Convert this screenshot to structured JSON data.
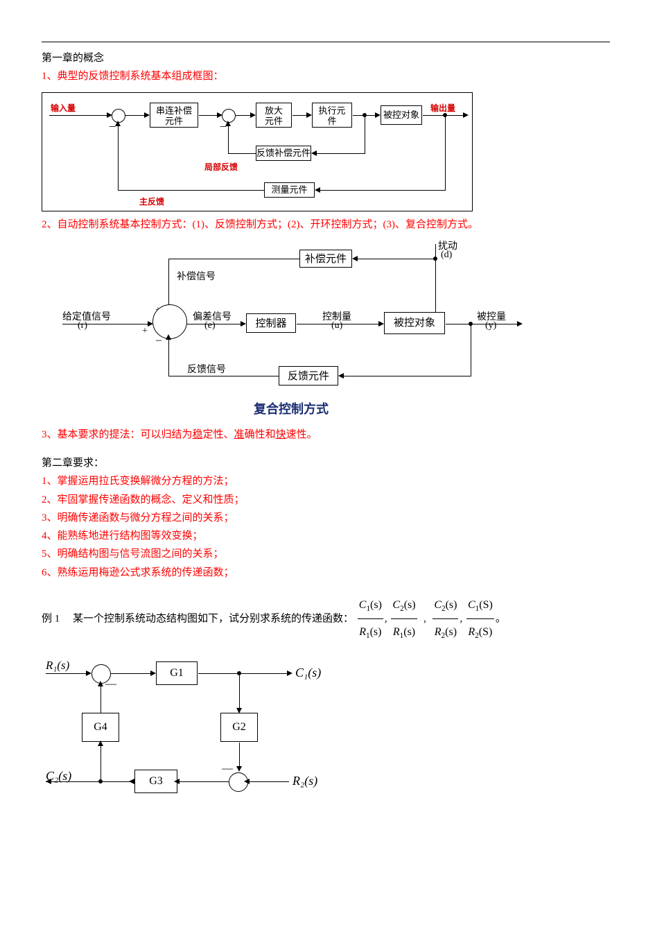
{
  "chapter1_title": "第一章的概念",
  "item1_heading": "1、典型的反馈控制系统基本组成框图：",
  "diagram1": {
    "type": "flowchart",
    "border_color": "#000000",
    "background_color": "#ffffff",
    "input_label": "输入量",
    "output_label": "输出量",
    "box_serial_comp": "串连补偿\n元件",
    "box_amplifier": "放大\n元件",
    "box_actuator": "执行元\n件",
    "box_plant": "被控对象",
    "box_fb_comp": "反馈补偿元件",
    "box_measure": "测量元件",
    "label_local_fb": "局部反馈",
    "label_main_fb": "主反馈",
    "minus1": "－",
    "minus2": "－",
    "red_label_color": "#d60000",
    "text_color": "#000000",
    "font_size_box": 13,
    "font_size_label": 12,
    "line_color": "#000000"
  },
  "item2_heading": "2、自动控制系统基本控制方式：(1)、反馈控制方式；(2)、开环控制方式；(3)、复合控制方式。",
  "item2_extra": "",
  "diagram2": {
    "type": "flowchart",
    "label_setpoint": "给定值信号",
    "label_setpoint_sym": "(r)",
    "label_comp_signal": "补偿信号",
    "label_error": "偏差信号",
    "label_error_sym": "(e)",
    "label_fb_signal": "反馈信号",
    "label_control_var": "控制量",
    "label_control_sym": "(u)",
    "label_disturb": "扰动",
    "label_disturb_sym": "(d)",
    "label_controlled": "被控量",
    "label_controlled_sym": "(y)",
    "box_comp": "补偿元件",
    "box_controller": "控制器",
    "box_plant": "被控对象",
    "box_feedback": "反馈元件",
    "caption": "复合控制方式",
    "plus1": "+",
    "plus2": "+",
    "minus": "–",
    "text_color": "#000000",
    "caption_color": "#1a2d72",
    "caption_fontsize": 18,
    "caption_fontweight": "bold",
    "line_color": "#000000",
    "font_size_box": 15,
    "font_size_label": 14
  },
  "item3_leading": "3、基本要求的提法：可以归结为",
  "item3_u1": "稳",
  "item3_plain1": "定性、",
  "item3_u2": "准",
  "item3_plain2": "确性和",
  "item3_u3": "快",
  "item3_plain3": "速性。",
  "chapter2_title": "第二章要求：",
  "ch2_1": "1、掌握运用拉氏变换解微分方程的方法；",
  "ch2_2": "2、牢固掌握传递函数的概念、定义和性质；",
  "ch2_3": "3、明确传递函数与微分方程之间的关系；",
  "ch2_4": "4、能熟练地进行结构图等效变换；",
  "ch2_5": "5、明确结构图与信号流图之间的关系；",
  "ch2_6": "6、熟练运用梅逊公式求系统的传递函数；",
  "example_label": "例 1  某一个控制系统动态结构图如下，试分别求系统的传递函数：",
  "fracs": {
    "n1": "C",
    "n1_sub": "1",
    "d1": "R",
    "d1_sub": "1",
    "n2": "C",
    "n2_sub": "2",
    "d2": "R",
    "d2_sub": "1",
    "n3": "C",
    "n3_sub": "2",
    "d3": "R",
    "d3_sub": "2",
    "n4": "C",
    "n4_sub": "1",
    "d4": "R",
    "d4_sub": "2",
    "arg1": "(s)",
    "arg2": "(s)",
    "arg3": "(s)",
    "arg4": "(S)"
  },
  "diagram3": {
    "type": "flowchart",
    "R1": "R₁(s)",
    "R2": "R₂(s)",
    "C1": "C₁(s)",
    "C2": "C₂(s)",
    "G1": "G1",
    "G2": "G2",
    "G3": "G3",
    "G4": "G4",
    "minus1": "—",
    "minus2": "—",
    "line_color": "#000000",
    "font_size_box": 16,
    "font_size_label": 16
  },
  "colors": {
    "red": "#ff0000",
    "bold_red": "#d60000",
    "bold_blue": "#1a2d72",
    "black": "#000000",
    "background": "#ffffff"
  }
}
